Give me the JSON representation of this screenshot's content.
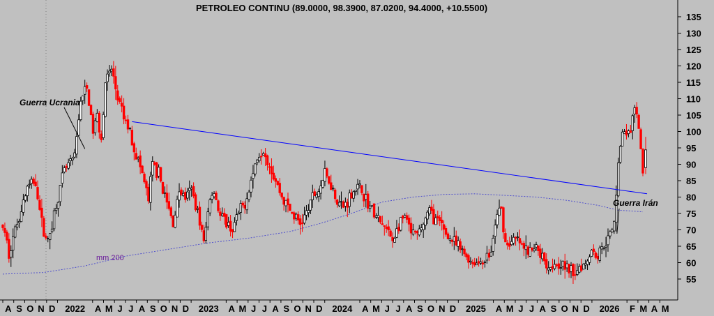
{
  "chart_data": {
    "type": "candlestick",
    "title": "PETROLEO CONTINU (89.0000, 98.3900, 87.0200, 94.4000, +10.5500)",
    "ylim": [
      51,
      141
    ],
    "y_ticks": [
      55,
      60,
      65,
      70,
      75,
      80,
      85,
      90,
      95,
      100,
      105,
      110,
      115,
      120,
      125,
      130,
      135
    ],
    "x_labels": [
      "A",
      "S",
      "O",
      "N",
      "D",
      "2022",
      "A",
      "M",
      "J",
      "J",
      "A",
      "S",
      "O",
      "N",
      "D",
      "2023",
      "A",
      "M",
      "J",
      "J",
      "A",
      "S",
      "O",
      "N",
      "D",
      "2024",
      "A",
      "M",
      "J",
      "J",
      "A",
      "S",
      "O",
      "N",
      "D",
      "2025",
      "A",
      "M",
      "J",
      "J",
      "A",
      "S",
      "O",
      "N",
      "D",
      "2026",
      "F",
      "M",
      "A",
      "M"
    ],
    "year_labels": [
      "2022",
      "2023",
      "2024",
      "2025",
      "2026"
    ],
    "anchors": [
      {
        "w": 0,
        "p": 71
      },
      {
        "w": 3,
        "p": 63
      },
      {
        "w": 6,
        "p": 70
      },
      {
        "w": 12,
        "p": 83
      },
      {
        "w": 16,
        "p": 85
      },
      {
        "w": 19,
        "p": 72
      },
      {
        "w": 22,
        "p": 66
      },
      {
        "w": 25,
        "p": 75
      },
      {
        "w": 30,
        "p": 88
      },
      {
        "w": 35,
        "p": 92
      },
      {
        "w": 38,
        "p": 110
      },
      {
        "w": 41,
        "p": 113
      },
      {
        "w": 44,
        "p": 100
      },
      {
        "w": 46,
        "p": 105
      },
      {
        "w": 48,
        "p": 98
      },
      {
        "w": 50,
        "p": 115
      },
      {
        "w": 53,
        "p": 119
      },
      {
        "w": 56,
        "p": 110
      },
      {
        "w": 59,
        "p": 104
      },
      {
        "w": 62,
        "p": 100
      },
      {
        "w": 64,
        "p": 95
      },
      {
        "w": 68,
        "p": 87
      },
      {
        "w": 71,
        "p": 79
      },
      {
        "w": 73,
        "p": 90
      },
      {
        "w": 76,
        "p": 87
      },
      {
        "w": 80,
        "p": 78
      },
      {
        "w": 83,
        "p": 72
      },
      {
        "w": 86,
        "p": 82
      },
      {
        "w": 89,
        "p": 80
      },
      {
        "w": 92,
        "p": 82
      },
      {
        "w": 95,
        "p": 76
      },
      {
        "w": 98,
        "p": 66
      },
      {
        "w": 101,
        "p": 80
      },
      {
        "w": 103,
        "p": 82
      },
      {
        "w": 106,
        "p": 74
      },
      {
        "w": 109,
        "p": 72
      },
      {
        "w": 112,
        "p": 70
      },
      {
        "w": 115,
        "p": 75
      },
      {
        "w": 118,
        "p": 78
      },
      {
        "w": 121,
        "p": 85
      },
      {
        "w": 124,
        "p": 92
      },
      {
        "w": 127,
        "p": 95
      },
      {
        "w": 130,
        "p": 90
      },
      {
        "w": 133,
        "p": 85
      },
      {
        "w": 136,
        "p": 80
      },
      {
        "w": 139,
        "p": 77
      },
      {
        "w": 142,
        "p": 74
      },
      {
        "w": 145,
        "p": 72
      },
      {
        "w": 148,
        "p": 75
      },
      {
        "w": 151,
        "p": 80
      },
      {
        "w": 154,
        "p": 82
      },
      {
        "w": 157,
        "p": 87
      },
      {
        "w": 160,
        "p": 84
      },
      {
        "w": 163,
        "p": 79
      },
      {
        "w": 166,
        "p": 77
      },
      {
        "w": 169,
        "p": 80
      },
      {
        "w": 172,
        "p": 83
      },
      {
        "w": 175,
        "p": 82
      },
      {
        "w": 178,
        "p": 78
      },
      {
        "w": 181,
        "p": 75
      },
      {
        "w": 184,
        "p": 72
      },
      {
        "w": 187,
        "p": 70
      },
      {
        "w": 190,
        "p": 67
      },
      {
        "w": 193,
        "p": 71
      },
      {
        "w": 196,
        "p": 74
      },
      {
        "w": 199,
        "p": 69
      },
      {
        "w": 202,
        "p": 68
      },
      {
        "w": 205,
        "p": 72
      },
      {
        "w": 208,
        "p": 76
      },
      {
        "w": 211,
        "p": 73
      },
      {
        "w": 214,
        "p": 71
      },
      {
        "w": 217,
        "p": 68
      },
      {
        "w": 220,
        "p": 66
      },
      {
        "w": 223,
        "p": 64
      },
      {
        "w": 226,
        "p": 62
      },
      {
        "w": 229,
        "p": 60
      },
      {
        "w": 232,
        "p": 60
      },
      {
        "w": 235,
        "p": 61
      },
      {
        "w": 238,
        "p": 63
      },
      {
        "w": 241,
        "p": 75
      },
      {
        "w": 243,
        "p": 76
      },
      {
        "w": 245,
        "p": 66
      },
      {
        "w": 248,
        "p": 66
      },
      {
        "w": 251,
        "p": 67
      },
      {
        "w": 254,
        "p": 64
      },
      {
        "w": 257,
        "p": 63
      },
      {
        "w": 260,
        "p": 65
      },
      {
        "w": 263,
        "p": 62
      },
      {
        "w": 266,
        "p": 59
      },
      {
        "w": 269,
        "p": 60
      },
      {
        "w": 272,
        "p": 60
      },
      {
        "w": 275,
        "p": 58
      },
      {
        "w": 278,
        "p": 57
      },
      {
        "w": 281,
        "p": 59
      },
      {
        "w": 284,
        "p": 60
      },
      {
        "w": 287,
        "p": 64
      },
      {
        "w": 290,
        "p": 62
      },
      {
        "w": 293,
        "p": 66
      },
      {
        "w": 296,
        "p": 68
      },
      {
        "w": 298,
        "p": 72
      },
      {
        "w": 300,
        "p": 92
      },
      {
        "w": 302,
        "p": 99
      },
      {
        "w": 304,
        "p": 100
      },
      {
        "w": 306,
        "p": 99
      },
      {
        "w": 308,
        "p": 108
      },
      {
        "w": 310,
        "p": 100
      },
      {
        "w": 312,
        "p": 88
      }
    ],
    "ma200": [
      {
        "w": 0,
        "p": 56.5
      },
      {
        "w": 20,
        "p": 57
      },
      {
        "w": 40,
        "p": 59
      },
      {
        "w": 60,
        "p": 62
      },
      {
        "w": 80,
        "p": 64
      },
      {
        "w": 100,
        "p": 66
      },
      {
        "w": 120,
        "p": 67.5
      },
      {
        "w": 140,
        "p": 69.5
      },
      {
        "w": 155,
        "p": 72
      },
      {
        "w": 170,
        "p": 75
      },
      {
        "w": 185,
        "p": 78.5
      },
      {
        "w": 200,
        "p": 80
      },
      {
        "w": 215,
        "p": 80.8
      },
      {
        "w": 230,
        "p": 81
      },
      {
        "w": 245,
        "p": 80.5
      },
      {
        "w": 260,
        "p": 80
      },
      {
        "w": 275,
        "p": 79
      },
      {
        "w": 290,
        "p": 77.5
      },
      {
        "w": 300,
        "p": 76
      },
      {
        "w": 312,
        "p": 75.5
      }
    ],
    "trendline": [
      {
        "w": 63,
        "p": 103
      },
      {
        "w": 312,
        "p": 81
      }
    ],
    "annotations": [
      {
        "text": "Guerra Ucrania",
        "w": 40,
        "p": 93
      },
      {
        "text": "Guerra Irán",
        "w": 298,
        "p": 68
      }
    ],
    "ma_label": "mm 200",
    "last_close": 94.4,
    "colors": {
      "up": "#000000",
      "down": "#ff0000",
      "ma": "#5050cc",
      "trend": "#0000ff",
      "background": "#c0c0c0",
      "malabel": "#6a1b9a"
    }
  }
}
